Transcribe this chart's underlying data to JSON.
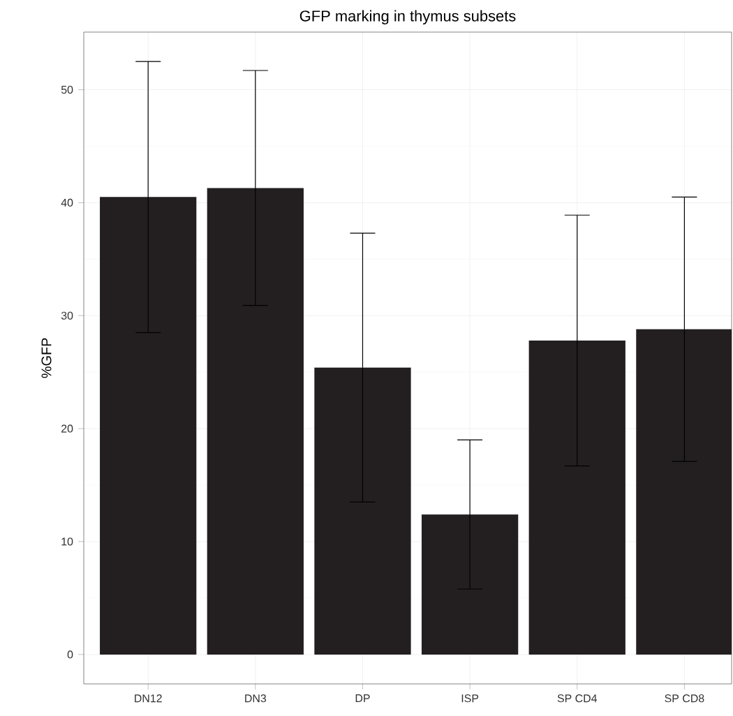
{
  "chart_data": {
    "type": "bar",
    "title": "GFP marking in thymus subsets",
    "ylabel": "%GFP",
    "categories": [
      "DN12",
      "DN3",
      "DP",
      "ISP",
      "SP CD4",
      "SP CD8"
    ],
    "values": [
      40.5,
      41.3,
      25.4,
      12.4,
      27.8,
      28.8
    ],
    "errors": [
      12.0,
      10.4,
      11.9,
      6.6,
      11.1,
      11.7
    ],
    "color": "#231f20",
    "ylim": [
      -2.6,
      55.1
    ],
    "yticks": [
      0,
      10,
      20,
      30,
      40,
      50
    ],
    "grid": true
  }
}
